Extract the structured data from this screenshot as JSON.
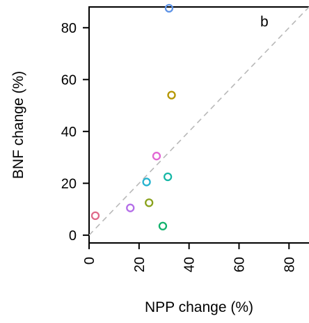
{
  "chart_data": {
    "type": "scatter",
    "panel_label": "b",
    "xlabel": "NPP change (%)",
    "ylabel": "BNF change (%)",
    "xlim": [
      0,
      88
    ],
    "ylim": [
      -3,
      88
    ],
    "xticks": [
      0,
      20,
      40,
      60,
      80
    ],
    "yticks": [
      0,
      20,
      40,
      60,
      80
    ],
    "x_tick_labels": [
      "0",
      "20",
      "40",
      "60",
      "80"
    ],
    "y_tick_labels": [
      "0",
      "20",
      "40",
      "60",
      "80"
    ],
    "reference_line": "1:1 dashed",
    "reference_color": "#b8b8b8",
    "grid": false,
    "points": [
      {
        "x": 2.5,
        "y": 7.5,
        "color": "#e06a8a"
      },
      {
        "x": 16.5,
        "y": 10.5,
        "color": "#b46ee8"
      },
      {
        "x": 23,
        "y": 20.5,
        "color": "#26b3cf"
      },
      {
        "x": 24,
        "y": 12.5,
        "color": "#8aa21d"
      },
      {
        "x": 27,
        "y": 30.5,
        "color": "#e266d4"
      },
      {
        "x": 29.5,
        "y": 3.5,
        "color": "#13b26d"
      },
      {
        "x": 31.5,
        "y": 22.5,
        "color": "#17b7a6"
      },
      {
        "x": 32,
        "y": 87.5,
        "color": "#5e93e6"
      },
      {
        "x": 33,
        "y": 54,
        "color": "#b59600"
      }
    ]
  }
}
